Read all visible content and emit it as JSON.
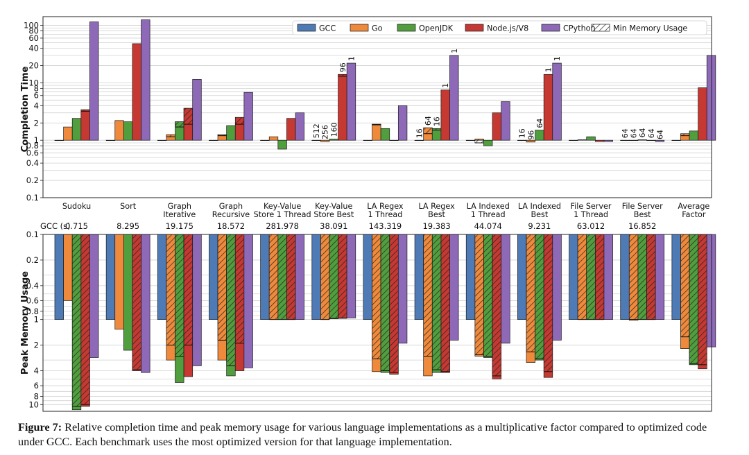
{
  "chart_data": [
    {
      "type": "bar",
      "scale": "log",
      "ylabel": "Completion Time",
      "ylim": [
        0.1,
        120
      ],
      "yticks": [
        "0.1",
        "0.2",
        "0.4",
        "0.6",
        "0.8",
        "1",
        "2",
        "4",
        "6",
        "8",
        "10",
        "20",
        "40",
        "60",
        "80",
        "100"
      ],
      "categories": [
        [
          "Sudoku"
        ],
        [
          "Sort"
        ],
        [
          "Graph",
          "Iterative"
        ],
        [
          "Graph",
          "Recursive"
        ],
        [
          "Key-Value",
          "Store 1 Thread"
        ],
        [
          "Key-Value",
          "Store Best"
        ],
        [
          "LA Regex",
          "1 Thread"
        ],
        [
          "LA Regex",
          "Best"
        ],
        [
          "LA Indexed",
          "1 Thread"
        ],
        [
          "LA Indexed",
          "Best"
        ],
        [
          "File Server",
          "1 Thread"
        ],
        [
          "File Server",
          "Best"
        ],
        [
          "Average",
          "Factor"
        ]
      ],
      "series": [
        {
          "name": "GCC",
          "color": "#4e7ab5",
          "values": [
            1,
            1,
            1,
            1,
            1,
            1,
            1,
            1,
            1,
            1,
            1,
            1,
            1
          ]
        },
        {
          "name": "Go",
          "color": "#ef8a3c",
          "values": [
            1.7,
            2.2,
            1.25,
            1.25,
            1.15,
            0.95,
            1.9,
            1.65,
            1.05,
            0.93,
            1.02,
            1.0,
            1.3
          ]
        },
        {
          "name": "OpenJDK",
          "color": "#519e3e",
          "values": [
            2.4,
            2.1,
            2.1,
            1.8,
            0.7,
            1.05,
            1.6,
            1.6,
            0.8,
            1.5,
            1.15,
            1.02,
            1.45
          ]
        },
        {
          "name": "Node.js/V8",
          "color": "#c53932",
          "values": [
            3.4,
            48,
            3.6,
            2.5,
            2.4,
            14,
            1.0,
            7.5,
            3.0,
            14,
            0.95,
            1.0,
            8.2
          ]
        },
        {
          "name": "CPython",
          "color": "#8d69b8",
          "values": [
            115,
            125,
            11.5,
            6.8,
            3.0,
            22,
            4.0,
            30,
            4.7,
            22,
            0.95,
            0.95,
            30
          ]
        }
      ],
      "hatched_min": {
        "Go": [
          null,
          null,
          1.15,
          1.2,
          null,
          null,
          1.85,
          1.3,
          0.9,
          null,
          null,
          null,
          1.2
        ],
        "OpenJDK": [
          null,
          null,
          1.7,
          null,
          null,
          null,
          null,
          1.5,
          null,
          null,
          null,
          null,
          null
        ],
        "Node.js/V8": [
          3.2,
          null,
          1.9,
          1.9,
          null,
          13,
          null,
          null,
          null,
          null,
          null,
          null,
          null
        ]
      },
      "bar_labels": [
        {
          "category": 5,
          "series": [
            1,
            2,
            3,
            4
          ],
          "labels": [
            "256",
            "160",
            "96",
            "1"
          ]
        },
        {
          "category": 5,
          "series": [
            0
          ],
          "labels": [
            "512"
          ]
        },
        {
          "category": 7,
          "series": [
            0,
            1,
            2,
            3,
            4
          ],
          "labels": [
            "16",
            "64",
            "16",
            "1",
            "1"
          ]
        },
        {
          "category": 9,
          "series": [
            0,
            1,
            2,
            3,
            4
          ],
          "labels": [
            "16",
            "96",
            "64",
            "1",
            "1"
          ]
        },
        {
          "category": 11,
          "series": [
            0,
            1,
            2,
            3,
            4
          ],
          "labels": [
            "64",
            "64",
            "64",
            "64",
            "64"
          ]
        }
      ],
      "legend": [
        "GCC",
        "Go",
        "OpenJDK",
        "Node.js/V8",
        "CPython",
        "Min Memory Usage"
      ],
      "legend_position": "top-right"
    },
    {
      "type": "bar",
      "scale": "log",
      "inverted": true,
      "ylabel": "Peak Memory Usage",
      "ylim": [
        0.1,
        12
      ],
      "yticks": [
        "0.1",
        "0.2",
        "0.4",
        "0.6",
        "0.8",
        "1",
        "2",
        "4",
        "6",
        "8",
        "10"
      ],
      "series": [
        {
          "name": "GCC",
          "values": [
            1,
            1,
            1,
            1,
            1,
            1,
            1,
            1,
            1,
            1,
            1,
            1,
            1
          ]
        },
        {
          "name": "Go",
          "values": [
            0.6,
            1.3,
            3.0,
            3.0,
            1.0,
            1.0,
            4.1,
            4.6,
            2.7,
            3.2,
            1.0,
            1.02,
            2.2
          ]
        },
        {
          "name": "OpenJDK",
          "values": [
            11.5,
            2.3,
            5.5,
            4.6,
            1.0,
            0.98,
            4.2,
            4.2,
            2.8,
            3.0,
            1.0,
            1.0,
            3.4
          ]
        },
        {
          "name": "Node.js/V8",
          "values": [
            10.5,
            4.0,
            4.7,
            4.0,
            1.0,
            0.97,
            4.4,
            4.2,
            5.0,
            4.8,
            1.0,
            1.0,
            3.8
          ]
        },
        {
          "name": "CPython",
          "values": [
            2.8,
            4.2,
            3.5,
            3.7,
            1.0,
            0.96,
            1.9,
            1.75,
            1.9,
            1.75,
            1.0,
            1.0,
            2.1
          ]
        }
      ],
      "hatched_min": {
        "Go": [
          null,
          null,
          2.0,
          1.75,
          1.0,
          1.0,
          2.9,
          2.7,
          2.6,
          2.4,
          1.0,
          1.0,
          1.6
        ],
        "OpenJDK": [
          10.5,
          null,
          2.7,
          3.5,
          1.0,
          0.97,
          4.0,
          3.9,
          2.7,
          2.9,
          1.0,
          1.0,
          3.3
        ],
        "Node.js/V8": [
          10.0,
          3.9,
          2.0,
          1.9,
          1.0,
          0.96,
          4.2,
          4.1,
          4.6,
          4.1,
          1.0,
          1.0,
          3.4
        ]
      }
    }
  ],
  "gcc_row": {
    "label": "GCC (s)",
    "values": [
      "0.715",
      "8.295",
      "19.175",
      "18.572",
      "281.978",
      "38.091",
      "143.319",
      "19.383",
      "44.074",
      "9.231",
      "63.012",
      "16.852",
      ""
    ]
  },
  "caption": {
    "label": "Figure 7:",
    "text": " Relative completion time and peak memory usage for various language implementations as a multiplicative factor compared to optimized code under GCC. Each benchmark uses the most optimized version for that language implementation."
  }
}
